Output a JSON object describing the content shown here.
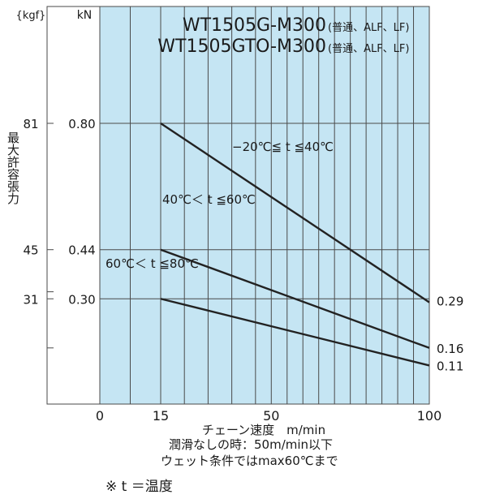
{
  "chart_data": {
    "type": "line",
    "title_lines": [
      {
        "main": "WT1505G-M300",
        "sub": "(普通、ALF、LF)"
      },
      {
        "main": "WT1505GTO-M300",
        "sub": "(普通、ALF、LF)"
      }
    ],
    "xlabel": "チェーン速度　m/min",
    "ylabel": "最大許容張力",
    "y_unit_kN": "kN",
    "y_unit_kgf": "{kgf}",
    "xlim": [
      -15,
      100
    ],
    "ylim": [
      0,
      1.05
    ],
    "x_ticks": [
      0,
      15,
      50,
      100
    ],
    "x_tick_labels": [
      "0",
      "15",
      "50",
      "100"
    ],
    "y_ticks": [
      0.8,
      0.44,
      0.3
    ],
    "y_tick_labels_kN": [
      "0.80",
      "0.44",
      "0.30"
    ],
    "y_tick_labels_kgf": [
      "81",
      "45",
      "31"
    ],
    "x_grid": [
      0,
      7.5,
      15,
      22.5,
      30,
      37.5,
      45,
      50,
      55,
      60,
      65,
      70,
      75,
      80,
      85,
      90,
      95,
      100
    ],
    "y_grid": [
      0.8,
      0.44,
      0.3
    ],
    "grid": true,
    "series": [
      {
        "name": "−20℃≦ t ≦40℃",
        "x": [
          -15,
          15,
          100
        ],
        "y": [
          0.8,
          0.8,
          0.29
        ],
        "end_label": "0.29"
      },
      {
        "name": "40℃＜ t ≦60℃",
        "x": [
          -15,
          15,
          100
        ],
        "y": [
          0.44,
          0.44,
          0.16
        ],
        "end_label": "0.16"
      },
      {
        "name": "60℃＜ t ≦80℃",
        "x": [
          -15,
          15,
          100
        ],
        "y": [
          0.3,
          0.3,
          0.11
        ],
        "end_label": "0.11"
      }
    ],
    "notes": [
      "潤滑なしの時：50m/min以下",
      "ウェット条件ではmax60℃まで"
    ],
    "footnote": "※ t ＝温度"
  },
  "colors": {
    "plot_background": "#c5e5f3",
    "left_band": "#ffffff",
    "grid": "#4a4a4a",
    "line": "#222222"
  }
}
